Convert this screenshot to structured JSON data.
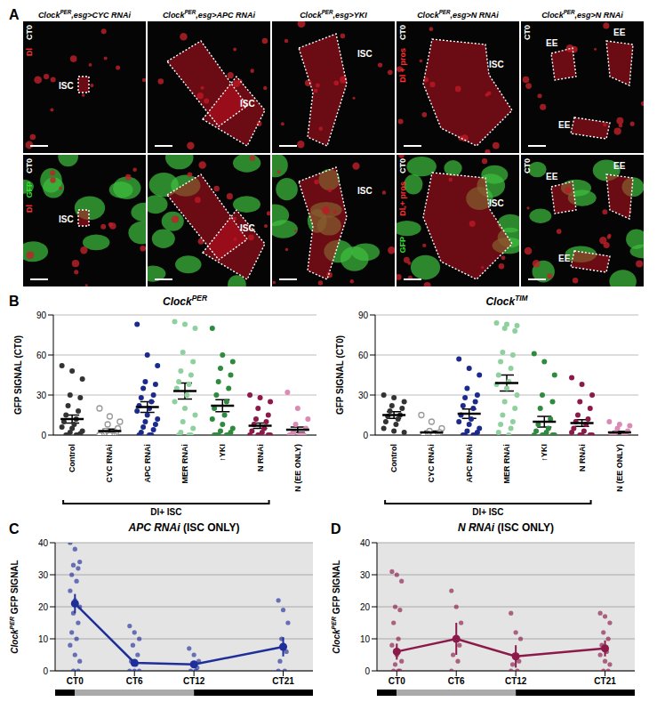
{
  "panel_a": {
    "label": "A",
    "columns": [
      {
        "title": [
          {
            "text": "Clock"
          },
          {
            "text": "PER",
            "sup": true
          },
          {
            "text": ",esg>CYC RNAi"
          }
        ],
        "top_labels": [
          {
            "text": "CT0",
            "color": "#ffffff"
          },
          {
            "text": "Dl",
            "color": "#ff3030"
          }
        ],
        "bottom_labels": [
          {
            "text": "CT0",
            "color": "#ffffff"
          },
          {
            "text": "GFP",
            "color": "#33dd33"
          },
          {
            "text": "Dl",
            "color": "#ff3030"
          }
        ],
        "top_annotations": [
          "ISC"
        ],
        "bottom_annotations": [
          "ISC"
        ]
      },
      {
        "title": [
          {
            "text": "Clock"
          },
          {
            "text": "PER",
            "sup": true
          },
          {
            "text": ",esg>APC RNAi"
          }
        ],
        "top_labels": [],
        "bottom_labels": [],
        "top_annotations": [
          "ISC"
        ],
        "bottom_annotations": [
          "ISC"
        ]
      },
      {
        "title": [
          {
            "text": "Clock"
          },
          {
            "text": "PER",
            "sup": true
          },
          {
            "text": ",esg>YKI"
          }
        ],
        "top_labels": [],
        "bottom_labels": [],
        "top_annotations": [
          "ISC"
        ],
        "bottom_annotations": [
          "ISC"
        ]
      },
      {
        "title": [
          {
            "text": "Clock"
          },
          {
            "text": "PER",
            "sup": true
          },
          {
            "text": ",esg>N RNAi"
          }
        ],
        "top_labels": [
          {
            "text": "CT0",
            "color": "#ffffff"
          },
          {
            "text": "Dl + pros",
            "color": "#ff3030"
          }
        ],
        "bottom_labels": [
          {
            "text": "CT0",
            "color": "#ffffff"
          },
          {
            "text": "Dl + pros",
            "color": "#ff3030"
          },
          {
            "text": "GFP",
            "color": "#33dd33"
          }
        ],
        "top_annotations": [
          "ISC"
        ],
        "bottom_annotations": [
          "ISC"
        ]
      },
      {
        "title": [
          {
            "text": "Clock"
          },
          {
            "text": "PER",
            "sup": true
          },
          {
            "text": ",esg>N RNAi"
          }
        ],
        "top_labels": [
          {
            "text": "CT0",
            "color": "#ffffff"
          }
        ],
        "bottom_labels": [
          {
            "text": "CT0",
            "color": "#ffffff"
          }
        ],
        "top_annotations": [
          "EE",
          "EE",
          "EE"
        ],
        "bottom_annotations": [
          "EE",
          "EE",
          "EE"
        ]
      }
    ]
  },
  "chart_data": [
    {
      "label": "B",
      "type": "scatter",
      "title": [
        {
          "text": "Clock",
          "italic": true
        },
        {
          "text": "PER",
          "sup": true,
          "italic": true
        }
      ],
      "y_label": "GFP SIGNAL (CT0)",
      "ylim": [
        0,
        90
      ],
      "yticks": [
        0,
        30,
        60,
        90
      ],
      "grid": true,
      "annotation": {
        "text": "Dl+ ISC",
        "span": [
          "Control",
          "N RNAi"
        ]
      },
      "series": [
        {
          "name": "Control",
          "color": "#333333",
          "marker": "filled",
          "values": [
            52,
            48,
            42,
            30,
            28,
            22,
            18,
            15,
            12,
            10,
            8,
            6,
            5,
            3,
            2,
            1,
            0,
            0,
            0,
            0
          ],
          "mean": 12,
          "sem": 3
        },
        {
          "name": "CYC RNAi",
          "color": "#999999",
          "marker": "open",
          "values": [
            20,
            14,
            10,
            8,
            5,
            3,
            2,
            1,
            0,
            0,
            0,
            0,
            0
          ],
          "mean": 3,
          "sem": 1.5
        },
        {
          "name": "APC RNAi",
          "color": "#1c2a8c",
          "marker": "filled",
          "values": [
            83,
            60,
            52,
            40,
            38,
            35,
            30,
            28,
            25,
            22,
            20,
            18,
            15,
            12,
            10,
            8,
            6,
            4,
            2,
            0,
            0,
            0
          ],
          "mean": 21,
          "sem": 4
        },
        {
          "name": "MER RNAi",
          "color": "#8fd19e",
          "marker": "filled",
          "values": [
            85,
            83,
            80,
            62,
            55,
            48,
            45,
            40,
            38,
            35,
            30,
            25,
            20,
            15,
            10,
            5,
            2,
            0,
            0,
            0
          ],
          "mean": 33,
          "sem": 6
        },
        {
          "name": "↑YKI",
          "color": "#2e8b3e",
          "marker": "filled",
          "values": [
            80,
            60,
            55,
            50,
            45,
            40,
            35,
            30,
            25,
            20,
            15,
            12,
            8,
            5,
            3,
            2,
            0,
            0,
            0,
            0,
            0
          ],
          "mean": 22,
          "sem": 4.5
        },
        {
          "name": "N RNAi",
          "color": "#8b1a4a",
          "marker": "filled",
          "values": [
            30,
            28,
            25,
            20,
            15,
            12,
            10,
            8,
            5,
            3,
            2,
            0,
            0,
            0,
            0,
            0
          ],
          "mean": 7,
          "sem": 2
        },
        {
          "name": "N (EE ONLY)",
          "color": "#d98ab5",
          "marker": "filled",
          "values": [
            32,
            20,
            12,
            8,
            5,
            2,
            0,
            0,
            0,
            0,
            0
          ],
          "mean": 4,
          "sem": 2
        }
      ]
    },
    {
      "type": "scatter",
      "title": [
        {
          "text": "Clock",
          "italic": true
        },
        {
          "text": "TIM",
          "sup": true,
          "italic": true
        }
      ],
      "y_label": "GFP SIGNAL (CT0)",
      "ylim": [
        0,
        90
      ],
      "yticks": [
        0,
        30,
        60,
        90
      ],
      "grid": true,
      "annotation": {
        "text": "Dl+ ISC",
        "span": [
          "Control",
          "N RNAi"
        ]
      },
      "series": [
        {
          "name": "Control",
          "color": "#333333",
          "marker": "filled",
          "values": [
            30,
            28,
            25,
            22,
            20,
            18,
            15,
            14,
            12,
            10,
            8,
            5,
            3,
            2
          ],
          "mean": 15,
          "sem": 2.5
        },
        {
          "name": "CYC RNAi",
          "color": "#999999",
          "marker": "open",
          "values": [
            15,
            10,
            5,
            3,
            2,
            1,
            0,
            0,
            0,
            0,
            0
          ],
          "mean": 2,
          "sem": 1
        },
        {
          "name": "APC RNAi",
          "color": "#1c2a8c",
          "marker": "filled",
          "values": [
            57,
            50,
            45,
            35,
            30,
            28,
            25,
            22,
            20,
            15,
            12,
            10,
            8,
            5,
            3,
            2,
            0,
            0,
            0,
            0
          ],
          "mean": 16,
          "sem": 3.5
        },
        {
          "name": "MER RNAi",
          "color": "#8fd19e",
          "marker": "filled",
          "values": [
            84,
            83,
            82,
            80,
            78,
            62,
            60,
            55,
            50,
            45,
            40,
            38,
            35,
            30,
            25,
            20,
            15,
            10,
            8,
            5,
            2,
            0
          ],
          "mean": 39,
          "sem": 6
        },
        {
          "name": "↑YKI",
          "color": "#2e8b3e",
          "marker": "filled",
          "values": [
            61,
            55,
            45,
            30,
            25,
            20,
            12,
            8,
            5,
            3,
            2,
            0,
            0,
            0,
            0,
            0
          ],
          "mean": 10,
          "sem": 4
        },
        {
          "name": "N RNAi",
          "color": "#8b1a4a",
          "marker": "filled",
          "values": [
            43,
            38,
            30,
            25,
            20,
            15,
            12,
            10,
            8,
            5,
            3,
            2,
            0,
            0,
            0,
            0
          ],
          "mean": 9,
          "sem": 2.5
        },
        {
          "name": "N (EE ONLY)",
          "color": "#d98ab5",
          "marker": "filled",
          "values": [
            10,
            8,
            7,
            5,
            3,
            2,
            1,
            0,
            0,
            0
          ],
          "mean": 2,
          "sem": 0.8
        }
      ]
    },
    {
      "label": "C",
      "type": "line",
      "title": [
        {
          "text": "APC RNAi",
          "italic": true
        },
        {
          "text": " (ISC ONLY)"
        }
      ],
      "y_label": [
        {
          "text": "Clock",
          "italic": true
        },
        {
          "text": "PER",
          "sup": true,
          "italic": true
        },
        {
          "text": " GFP SIGNAL"
        }
      ],
      "x": [
        0,
        6,
        12,
        21
      ],
      "xlim": [
        -2,
        24
      ],
      "xticks": [
        {
          "value": 0,
          "label": "CT0"
        },
        {
          "value": 6,
          "label": "CT6"
        },
        {
          "value": 12,
          "label": "CT12"
        },
        {
          "value": 21,
          "label": "CT21"
        }
      ],
      "ylim": [
        0,
        40
      ],
      "yticks": [
        0,
        10,
        20,
        30,
        40
      ],
      "grid": true,
      "color": "#1f2f9a",
      "values": [
        [
          40,
          38,
          34,
          33,
          32,
          30,
          28,
          25,
          22,
          20,
          18,
          15,
          12,
          10,
          8,
          5,
          3,
          0,
          0
        ],
        [
          14,
          12,
          10,
          8,
          5,
          3,
          2,
          0,
          0,
          0
        ],
        [
          7,
          5,
          3,
          2,
          1,
          0,
          0
        ],
        [
          22,
          19,
          15,
          10,
          6,
          3,
          0,
          0
        ]
      ],
      "mean": [
        21,
        2.5,
        2,
        7.5
      ],
      "sem": [
        3,
        1,
        0.8,
        3
      ],
      "periods": [
        {
          "start": -2,
          "end": 0,
          "color": "#000000"
        },
        {
          "start": 0,
          "end": 12,
          "color": "#aaaaaa"
        },
        {
          "start": 12,
          "end": 24,
          "color": "#000000"
        }
      ]
    },
    {
      "label": "D",
      "type": "line",
      "title": [
        {
          "text": "N RNAi",
          "italic": true
        },
        {
          "text": " (ISC ONLY)"
        }
      ],
      "y_label": [
        {
          "text": "Clock",
          "italic": true
        },
        {
          "text": "PER",
          "sup": true,
          "italic": true
        },
        {
          "text": " GFP SIGNAL"
        }
      ],
      "x": [
        0,
        6,
        12,
        21
      ],
      "xlim": [
        -2,
        24
      ],
      "xticks": [
        {
          "value": 0,
          "label": "CT0"
        },
        {
          "value": 6,
          "label": "CT6"
        },
        {
          "value": 12,
          "label": "CT12"
        },
        {
          "value": 21,
          "label": "CT21"
        }
      ],
      "ylim": [
        0,
        40
      ],
      "yticks": [
        0,
        10,
        20,
        30,
        40
      ],
      "grid": true,
      "color": "#8b1a4a",
      "values": [
        [
          31,
          30,
          28,
          20,
          19,
          15,
          10,
          8,
          5,
          3,
          2,
          0,
          0,
          0
        ],
        [
          25,
          20,
          15,
          10,
          8,
          5,
          3,
          0
        ],
        [
          18,
          12,
          10,
          5,
          3,
          2,
          0,
          0
        ],
        [
          18,
          17,
          15,
          12,
          10,
          8,
          6,
          5,
          3,
          2,
          0,
          0
        ]
      ],
      "mean": [
        6,
        10,
        4.5,
        7
      ],
      "sem": [
        2.5,
        5,
        3.5,
        2.5
      ],
      "periods": [
        {
          "start": -2,
          "end": 0,
          "color": "#000000"
        },
        {
          "start": 0,
          "end": 12,
          "color": "#aaaaaa"
        },
        {
          "start": 12,
          "end": 24,
          "color": "#000000"
        }
      ]
    }
  ]
}
